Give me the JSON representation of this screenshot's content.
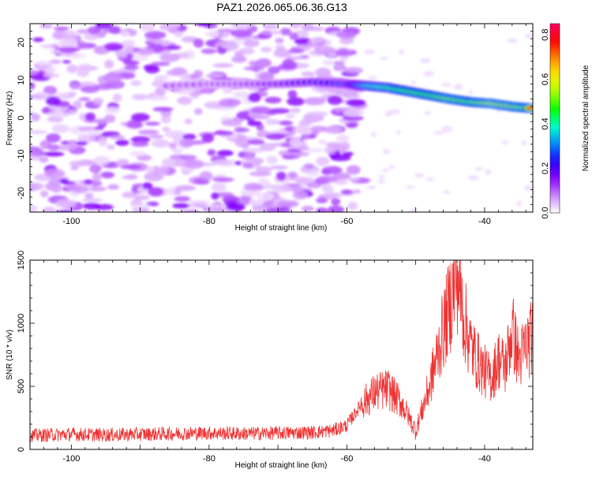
{
  "title": "PAZ1.2026.065.06.36.G13",
  "chart_data": [
    {
      "type": "heatmap",
      "xlabel": "Height of straight line (km)",
      "ylabel": "Frequency (Hz)",
      "xlim": [
        -106,
        -33
      ],
      "ylim": [
        -25,
        25
      ],
      "xticks": [
        -100,
        -80,
        -60,
        -40
      ],
      "yticks": [
        -20,
        -10,
        0,
        10,
        20
      ],
      "colorbar": {
        "label": "Normalized spectral amplitude",
        "range": [
          0.0,
          0.85
        ],
        "ticks": [
          "0.0",
          "0.2",
          "0.4",
          "0.6",
          "0.8"
        ],
        "tick_values": [
          0.0,
          0.2,
          0.4,
          0.6,
          0.8
        ],
        "colors": [
          "#ffffff",
          "#cc88ff",
          "#8800ff",
          "#2200ff",
          "#0088ff",
          "#00ffcc",
          "#00ff00",
          "#aaff00",
          "#ffee00",
          "#ff8800",
          "#ff0000",
          "#ff0066"
        ]
      },
      "signal_ridge": [
        {
          "x": -86,
          "y": 8.5,
          "amp": 0.12
        },
        {
          "x": -80,
          "y": 9.0,
          "amp": 0.12
        },
        {
          "x": -75,
          "y": 9.0,
          "amp": 0.14
        },
        {
          "x": -70,
          "y": 9.0,
          "amp": 0.2
        },
        {
          "x": -65,
          "y": 9.5,
          "amp": 0.26
        },
        {
          "x": -60,
          "y": 9.0,
          "amp": 0.3
        },
        {
          "x": -57,
          "y": 8.5,
          "amp": 0.55
        },
        {
          "x": -54,
          "y": 8.0,
          "amp": 0.62
        },
        {
          "x": -51,
          "y": 7.0,
          "amp": 0.7
        },
        {
          "x": -48,
          "y": 6.0,
          "amp": 0.72
        },
        {
          "x": -45,
          "y": 5.0,
          "amp": 0.78
        },
        {
          "x": -42,
          "y": 4.2,
          "amp": 0.75
        },
        {
          "x": -39,
          "y": 3.8,
          "amp": 0.82
        },
        {
          "x": -36,
          "y": 3.0,
          "amp": 0.8
        },
        {
          "x": -33,
          "y": 2.5,
          "amp": 0.75
        }
      ]
    },
    {
      "type": "line",
      "xlabel": "Height of straight line (km)",
      "ylabel": "SNR (10 * v/v)",
      "xlim": [
        -106,
        -33
      ],
      "ylim": [
        0,
        1500
      ],
      "xticks": [
        -100,
        -80,
        -60,
        -40
      ],
      "yticks": [
        0,
        500,
        1000,
        1500
      ],
      "color": "#ee3333",
      "series": [
        {
          "name": "SNR",
          "x": [
            -106,
            -100,
            -95,
            -90,
            -85,
            -80,
            -75,
            -70,
            -65,
            -62,
            -60,
            -58,
            -56,
            -54,
            -52,
            -50,
            -48,
            -47,
            -46,
            -45,
            -44,
            -43,
            -42,
            -41,
            -40,
            -39,
            -38,
            -37,
            -36,
            -35,
            -34,
            -33
          ],
          "y": [
            110,
            120,
            115,
            120,
            125,
            130,
            125,
            130,
            135,
            150,
            190,
            350,
            450,
            480,
            360,
            150,
            500,
            720,
            950,
            1150,
            1400,
            1050,
            820,
            700,
            620,
            560,
            720,
            650,
            950,
            700,
            820,
            900
          ]
        }
      ]
    }
  ]
}
